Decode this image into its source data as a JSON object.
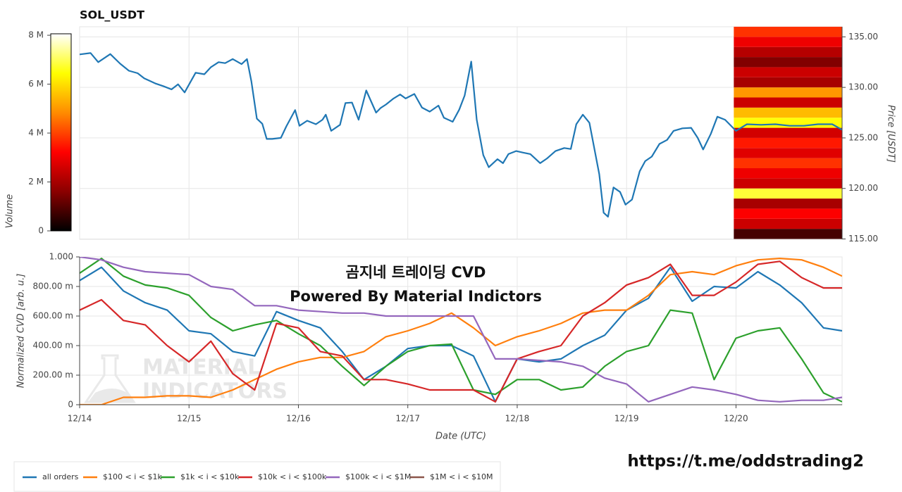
{
  "chart_data": [
    {
      "type": "line",
      "title": "SOL_USDT",
      "color": "#1f77b4",
      "x": [
        0,
        0.1,
        0.17,
        0.28,
        0.37,
        0.45,
        0.53,
        0.59,
        0.69,
        0.77,
        0.84,
        0.9,
        0.96,
        1.06,
        1.14,
        1.2,
        1.27,
        1.33,
        1.4,
        1.48,
        1.53,
        1.57,
        1.62,
        1.67,
        1.71,
        1.76,
        1.84,
        1.89,
        1.97,
        2.01,
        2.08,
        2.16,
        2.22,
        2.25,
        2.3,
        2.38,
        2.43,
        2.49,
        2.55,
        2.62,
        2.71,
        2.75,
        2.8,
        2.87,
        2.93,
        2.98,
        3.06,
        3.13,
        3.2,
        3.28,
        3.33,
        3.41,
        3.47,
        3.52,
        3.58,
        3.63,
        3.69,
        3.74,
        3.82,
        3.87,
        3.92,
        3.99,
        4.05,
        4.12,
        4.21,
        4.27,
        4.35,
        4.43,
        4.49,
        4.54,
        4.6,
        4.66,
        4.75,
        4.79,
        4.83,
        4.88,
        4.94,
        4.99,
        5.05,
        5.12,
        5.17,
        5.23,
        5.3,
        5.37,
        5.43,
        5.51,
        5.59,
        5.65,
        5.7,
        5.77,
        5.83,
        5.9,
        6.0,
        6.1,
        6.23,
        6.36,
        6.49,
        6.62,
        6.75,
        6.88,
        6.97
      ],
      "values": [
        133.26,
        133.4,
        132.5,
        133.3,
        132.35,
        131.65,
        131.4,
        130.9,
        130.4,
        130.1,
        129.8,
        130.3,
        129.5,
        131.45,
        131.3,
        132.0,
        132.5,
        132.4,
        132.8,
        132.3,
        132.8,
        130.6,
        126.9,
        126.4,
        124.9,
        124.9,
        125.0,
        126.15,
        127.75,
        126.2,
        126.7,
        126.35,
        126.8,
        127.3,
        125.7,
        126.3,
        128.45,
        128.5,
        126.8,
        129.7,
        127.5,
        127.95,
        128.3,
        128.9,
        129.3,
        128.9,
        129.35,
        128.0,
        127.6,
        128.2,
        127.0,
        126.6,
        127.8,
        129.2,
        132.55,
        126.8,
        123.3,
        122.1,
        122.9,
        122.5,
        123.4,
        123.7,
        123.55,
        123.4,
        122.5,
        122.95,
        123.7,
        124.0,
        123.9,
        126.35,
        127.3,
        126.5,
        121.4,
        117.6,
        117.2,
        120.1,
        119.65,
        118.4,
        118.9,
        121.7,
        122.7,
        123.15,
        124.4,
        124.8,
        125.7,
        125.95,
        126.0,
        125.0,
        123.85,
        125.4,
        127.1,
        126.8,
        125.7,
        126.35,
        126.3,
        126.35,
        126.2,
        126.2,
        126.35,
        126.35,
        125.8
      ],
      "xlim": [
        0,
        6.97
      ],
      "xticks": [
        0,
        1,
        2,
        3,
        4,
        5,
        6
      ],
      "ylim": [
        115,
        136
      ],
      "yticks": [
        {
          "value": 115,
          "label": "115.00"
        },
        {
          "value": 120,
          "label": "120.00"
        },
        {
          "value": 125,
          "label": "125.00"
        },
        {
          "value": 130,
          "label": "130.00"
        },
        {
          "value": 135,
          "label": "135.00"
        }
      ],
      "y_label": "Price [USDT]",
      "grid": true,
      "heatmap": {
        "label": "Volume",
        "xrange": [
          5.98,
          6.97
        ],
        "price_bins": [
          115,
          116,
          117,
          118,
          119,
          120,
          121,
          122,
          123,
          124,
          125,
          126,
          127,
          128,
          129,
          130,
          131,
          132,
          133,
          134,
          135,
          136
        ],
        "volumes": [
          800000,
          2500000,
          3200000,
          2000000,
          6800000,
          2500000,
          3000000,
          3800000,
          2800000,
          3500000,
          2600000,
          6500000,
          5500000,
          2500000,
          5000000,
          2000000,
          2500000,
          1500000,
          2200000,
          3000000,
          3800000
        ],
        "colormap": [
          "#000000",
          "#8b0000",
          "#ff0000",
          "#ff8c00",
          "#ffff00",
          "#ffffff"
        ],
        "clim": [
          0,
          8060000
        ],
        "cticks": [
          0,
          {
            "value": 2000000,
            "label": "2 M"
          },
          {
            "value": 4000000,
            "label": "4 M"
          },
          {
            "value": 6000000,
            "label": "6 M"
          },
          {
            "value": 8000000,
            "label": "8 M"
          }
        ]
      }
    },
    {
      "type": "line",
      "x": [
        0,
        0.2,
        0.4,
        0.6,
        0.8,
        1.0,
        1.2,
        1.4,
        1.6,
        1.8,
        2.0,
        2.2,
        2.4,
        2.6,
        2.8,
        3.0,
        3.2,
        3.4,
        3.6,
        3.8,
        4.0,
        4.2,
        4.4,
        4.6,
        4.8,
        5.0,
        5.2,
        5.4,
        5.6,
        5.8,
        6.0,
        6.2,
        6.4,
        6.6,
        6.8,
        6.97
      ],
      "series": [
        {
          "name": "all orders",
          "color": "#1f77b4",
          "values": [
            0.84,
            0.93,
            0.77,
            0.69,
            0.64,
            0.5,
            0.48,
            0.36,
            0.33,
            0.63,
            0.57,
            0.52,
            0.36,
            0.17,
            0.26,
            0.38,
            0.4,
            0.4,
            0.33,
            0.02,
            0.31,
            0.29,
            0.31,
            0.4,
            0.47,
            0.64,
            0.72,
            0.93,
            0.7,
            0.8,
            0.79,
            0.9,
            0.81,
            0.69,
            0.52,
            0.5
          ]
        },
        {
          "name": "$100 < i < $1k",
          "color": "#ff7f0e",
          "values": [
            0,
            0,
            0.05,
            0.05,
            0.06,
            0.06,
            0.05,
            0.1,
            0.17,
            0.24,
            0.29,
            0.32,
            0.32,
            0.36,
            0.46,
            0.5,
            0.55,
            0.62,
            0.52,
            0.4,
            0.46,
            0.5,
            0.55,
            0.62,
            0.64,
            0.64,
            0.74,
            0.88,
            0.9,
            0.88,
            0.94,
            0.98,
            0.99,
            0.98,
            0.93,
            0.87
          ]
        },
        {
          "name": "$1k < i < $10k",
          "color": "#2ca02c",
          "values": [
            0.89,
            0.99,
            0.87,
            0.81,
            0.79,
            0.74,
            0.59,
            0.5,
            0.54,
            0.57,
            0.48,
            0.4,
            0.26,
            0.13,
            0.26,
            0.36,
            0.4,
            0.41,
            0.1,
            0.07,
            0.17,
            0.17,
            0.1,
            0.12,
            0.26,
            0.36,
            0.4,
            0.64,
            0.62,
            0.17,
            0.45,
            0.5,
            0.52,
            0.31,
            0.08,
            0.02
          ]
        },
        {
          "name": "$10k < i < $100k",
          "color": "#d62728",
          "values": [
            0.64,
            0.71,
            0.57,
            0.54,
            0.4,
            0.29,
            0.43,
            0.21,
            0.1,
            0.55,
            0.52,
            0.36,
            0.33,
            0.17,
            0.17,
            0.14,
            0.1,
            0.1,
            0.1,
            0.02,
            0.31,
            0.36,
            0.4,
            0.6,
            0.69,
            0.81,
            0.86,
            0.95,
            0.74,
            0.74,
            0.83,
            0.95,
            0.97,
            0.86,
            0.79,
            0.79
          ]
        },
        {
          "name": "$100k < i < $1M",
          "color": "#9467bd",
          "values": [
            1.0,
            0.98,
            0.93,
            0.9,
            0.89,
            0.88,
            0.8,
            0.78,
            0.67,
            0.67,
            0.64,
            0.63,
            0.62,
            0.62,
            0.6,
            0.6,
            0.6,
            0.6,
            0.6,
            0.31,
            0.31,
            0.3,
            0.29,
            0.26,
            0.18,
            0.14,
            0.02,
            0.07,
            0.12,
            0.1,
            0.07,
            0.03,
            0.02,
            0.03,
            0.03,
            0.05
          ]
        },
        {
          "name": "$1M < i < $10M",
          "color": "#8c564b",
          "values": [
            null,
            null,
            null,
            null,
            null,
            null,
            null,
            null,
            null,
            null,
            null,
            null,
            null,
            null,
            null,
            null,
            null,
            null,
            null,
            null,
            null,
            null,
            null,
            null,
            null,
            null,
            null,
            null,
            null,
            null,
            null,
            null,
            null,
            null,
            null,
            null
          ]
        }
      ],
      "xlim": [
        0,
        6.97
      ],
      "xticks": [
        {
          "value": 0,
          "label": "12/14"
        },
        {
          "value": 1,
          "label": "12/15"
        },
        {
          "value": 2,
          "label": "12/16"
        },
        {
          "value": 3,
          "label": "12/17"
        },
        {
          "value": 4,
          "label": "12/18"
        },
        {
          "value": 5,
          "label": "12/19"
        },
        {
          "value": 6,
          "label": "12/20"
        }
      ],
      "ylim": [
        0,
        1
      ],
      "yticks": [
        0,
        {
          "value": 0.2,
          "label": "200.00 m"
        },
        {
          "value": 0.4,
          "label": "400.00 m"
        },
        {
          "value": 0.6,
          "label": "600.00 m"
        },
        {
          "value": 0.8,
          "label": "800.00 m"
        },
        {
          "value": 1,
          "label": "1.000"
        }
      ],
      "x_label": "Date (UTC)",
      "y_label": "Normalized CVD [arb. u.]",
      "grid": true,
      "legend": "bottom",
      "annotations": [
        "곰지네 트레이딩 CVD",
        "Powered By Material Indictors"
      ],
      "watermark": [
        "MATERIAL",
        "INDICATORS"
      ]
    }
  ],
  "footer": {
    "link": "https://t.me/oddstrading2"
  }
}
